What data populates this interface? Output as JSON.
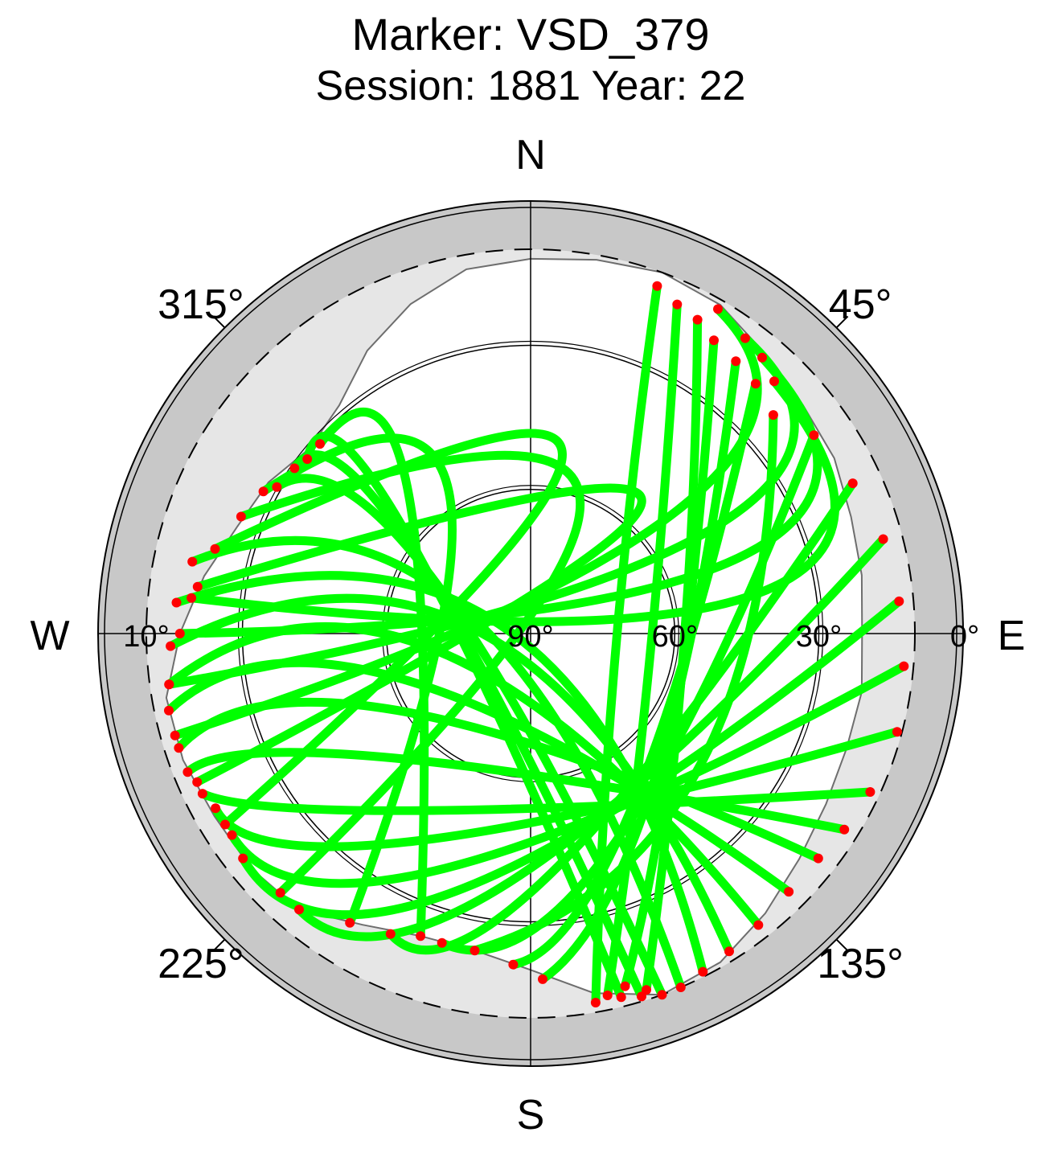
{
  "chart_data": {
    "type": "polar-skyplot",
    "title": "Marker: VSD_379",
    "subtitle": "Session: 1881 Year: 22",
    "directions": {
      "north": "N",
      "east": "E",
      "south": "S",
      "west": "W"
    },
    "azimuth_labels": [
      {
        "azimuth": 45,
        "text": "45°"
      },
      {
        "azimuth": 135,
        "text": "135°"
      },
      {
        "azimuth": 225,
        "text": "225°"
      },
      {
        "azimuth": 315,
        "text": "315°"
      }
    ],
    "elevation_labels": [
      {
        "elevation": 0,
        "text": "0°"
      },
      {
        "elevation": 10,
        "text": "10°"
      },
      {
        "elevation": 30,
        "text": "30°"
      },
      {
        "elevation": 60,
        "text": "60°"
      },
      {
        "elevation": 90,
        "text": "90°"
      }
    ],
    "elevation_mask_deg": 10,
    "elevation_circles_deg": [
      30,
      60
    ],
    "horizon_mask": [
      {
        "az": 0,
        "el": 12
      },
      {
        "az": 10,
        "el": 11
      },
      {
        "az": 20,
        "el": 10
      },
      {
        "az": 30,
        "el": 11
      },
      {
        "az": 40,
        "el": 14
      },
      {
        "az": 50,
        "el": 16
      },
      {
        "az": 60,
        "el": 17
      },
      {
        "az": 70,
        "el": 19
      },
      {
        "az": 80,
        "el": 20
      },
      {
        "az": 90,
        "el": 21
      },
      {
        "az": 100,
        "el": 20
      },
      {
        "az": 110,
        "el": 20
      },
      {
        "az": 120,
        "el": 19
      },
      {
        "az": 130,
        "el": 17
      },
      {
        "az": 140,
        "el": 14
      },
      {
        "az": 150,
        "el": 11
      },
      {
        "az": 160,
        "el": 10
      },
      {
        "az": 170,
        "el": 14
      },
      {
        "az": 180,
        "el": 20
      },
      {
        "az": 190,
        "el": 23
      },
      {
        "az": 200,
        "el": 23
      },
      {
        "az": 210,
        "el": 20
      },
      {
        "az": 220,
        "el": 15
      },
      {
        "az": 230,
        "el": 14
      },
      {
        "az": 240,
        "el": 14
      },
      {
        "az": 250,
        "el": 13
      },
      {
        "az": 260,
        "el": 13
      },
      {
        "az": 270,
        "el": 17
      },
      {
        "az": 280,
        "el": 21
      },
      {
        "az": 290,
        "el": 25
      },
      {
        "az": 300,
        "el": 27
      },
      {
        "az": 310,
        "el": 30
      },
      {
        "az": 320,
        "el": 28
      },
      {
        "az": 330,
        "el": 22
      },
      {
        "az": 340,
        "el": 17
      },
      {
        "az": 350,
        "el": 13
      }
    ],
    "tracks": [
      {
        "start": {
          "az": 20,
          "el": 13
        },
        "peak": {
          "az": 100,
          "el": 72
        },
        "end": {
          "az": 170,
          "el": 12
        }
      },
      {
        "start": {
          "az": 24,
          "el": 15
        },
        "peak": {
          "az": 110,
          "el": 64
        },
        "end": {
          "az": 168,
          "el": 13
        }
      },
      {
        "start": {
          "az": 28,
          "el": 16
        },
        "peak": {
          "az": 95,
          "el": 58
        },
        "end": {
          "az": 162,
          "el": 12
        }
      },
      {
        "start": {
          "az": 32,
          "el": 18
        },
        "peak": {
          "az": 120,
          "el": 55
        },
        "end": {
          "az": 165,
          "el": 14
        }
      },
      {
        "start": {
          "az": 37,
          "el": 19
        },
        "peak": {
          "az": 140,
          "el": 50
        },
        "end": {
          "az": 178,
          "el": 18
        }
      },
      {
        "start": {
          "az": 42,
          "el": 20
        },
        "peak": {
          "az": 150,
          "el": 48
        },
        "end": {
          "az": 183,
          "el": 21
        }
      },
      {
        "start": {
          "az": 48,
          "el": 22
        },
        "peak": {
          "az": 130,
          "el": 45
        },
        "end": {
          "az": 190,
          "el": 23
        }
      },
      {
        "start": {
          "az": 55,
          "el": 18
        },
        "peak": {
          "az": 160,
          "el": 42
        },
        "end": {
          "az": 196,
          "el": 23
        }
      },
      {
        "start": {
          "az": 65,
          "el": 16
        },
        "peak": {
          "az": 175,
          "el": 40
        },
        "end": {
          "az": 205,
          "el": 21
        }
      },
      {
        "start": {
          "az": 75,
          "el": 14
        },
        "peak": {
          "az": 185,
          "el": 38
        },
        "end": {
          "az": 220,
          "el": 15
        }
      },
      {
        "start": {
          "az": 85,
          "el": 13
        },
        "peak": {
          "az": 195,
          "el": 35
        },
        "end": {
          "az": 232,
          "el": 14
        }
      },
      {
        "start": {
          "az": 95,
          "el": 12
        },
        "peak": {
          "az": 200,
          "el": 38
        },
        "end": {
          "az": 236,
          "el": 15
        }
      },
      {
        "start": {
          "az": 105,
          "el": 11
        },
        "peak": {
          "az": 210,
          "el": 40
        },
        "end": {
          "az": 241,
          "el": 15
        }
      },
      {
        "start": {
          "az": 115,
          "el": 12
        },
        "peak": {
          "az": 215,
          "el": 45
        },
        "end": {
          "az": 244,
          "el": 14
        }
      },
      {
        "start": {
          "az": 122,
          "el": 13
        },
        "peak": {
          "az": 230,
          "el": 50
        },
        "end": {
          "az": 248,
          "el": 13
        }
      },
      {
        "start": {
          "az": 128,
          "el": 14
        },
        "peak": {
          "az": 240,
          "el": 58
        },
        "end": {
          "az": 252,
          "el": 13
        }
      },
      {
        "start": {
          "az": 135,
          "el": 14
        },
        "peak": {
          "az": 250,
          "el": 62
        },
        "end": {
          "az": 258,
          "el": 13
        }
      },
      {
        "start": {
          "az": 142,
          "el": 13
        },
        "peak": {
          "az": 260,
          "el": 70
        },
        "end": {
          "az": 262,
          "el": 14
        }
      },
      {
        "start": {
          "az": 148,
          "el": 12
        },
        "peak": {
          "az": 270,
          "el": 80
        },
        "end": {
          "az": 268,
          "el": 15
        }
      },
      {
        "start": {
          "az": 153,
          "el": 11
        },
        "peak": {
          "az": 280,
          "el": 85
        },
        "end": {
          "az": 275,
          "el": 16
        }
      },
      {
        "start": {
          "az": 157,
          "el": 10
        },
        "peak": {
          "az": 290,
          "el": 75
        },
        "end": {
          "az": 282,
          "el": 18
        }
      },
      {
        "start": {
          "az": 160,
          "el": 10
        },
        "peak": {
          "az": 300,
          "el": 66
        },
        "end": {
          "az": 300,
          "el": 29
        }
      },
      {
        "start": {
          "az": 163,
          "el": 11
        },
        "peak": {
          "az": 305,
          "el": 60
        },
        "end": {
          "az": 305,
          "el": 30
        }
      },
      {
        "start": {
          "az": 166,
          "el": 12
        },
        "peak": {
          "az": 310,
          "el": 55
        },
        "end": {
          "az": 308,
          "el": 31
        }
      },
      {
        "start": {
          "az": 200,
          "el": 23
        },
        "peak": {
          "az": 320,
          "el": 50
        },
        "end": {
          "az": 312,
          "el": 31
        }
      },
      {
        "start": {
          "az": 212,
          "el": 19
        },
        "peak": {
          "az": 330,
          "el": 56
        },
        "end": {
          "az": 298,
          "el": 27
        }
      },
      {
        "start": {
          "az": 224,
          "el": 15
        },
        "peak": {
          "az": 20,
          "el": 60
        },
        "end": {
          "az": 292,
          "el": 25
        }
      },
      {
        "start": {
          "az": 238,
          "el": 15
        },
        "peak": {
          "az": 10,
          "el": 52
        },
        "end": {
          "az": 285,
          "el": 22
        }
      },
      {
        "start": {
          "az": 246,
          "el": 14
        },
        "peak": {
          "az": 40,
          "el": 54
        },
        "end": {
          "az": 278,
          "el": 20
        }
      },
      {
        "start": {
          "az": 254,
          "el": 13
        },
        "peak": {
          "az": 50,
          "el": 50
        },
        "end": {
          "az": 30,
          "el": 12
        }
      },
      {
        "start": {
          "az": 262,
          "el": 14
        },
        "peak": {
          "az": 60,
          "el": 46
        },
        "end": {
          "az": 36,
          "el": 14
        }
      },
      {
        "start": {
          "az": 270,
          "el": 17
        },
        "peak": {
          "az": 70,
          "el": 44
        },
        "end": {
          "az": 40,
          "el": 15
        }
      },
      {
        "start": {
          "az": 276,
          "el": 19
        },
        "peak": {
          "az": 80,
          "el": 42
        },
        "end": {
          "az": 44,
          "el": 17
        }
      }
    ]
  }
}
